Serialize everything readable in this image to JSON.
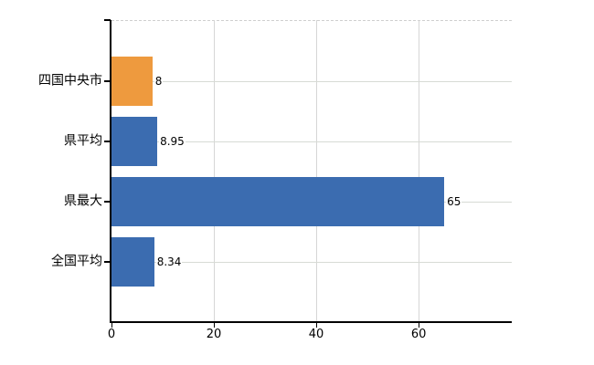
{
  "colors": {
    "highlight_bar": "#EE9A3E",
    "default_bar": "#3B6CB0",
    "axis": "#000000",
    "gridline": "#D6D6D6",
    "text": "#000000",
    "background": "#FFFFFF"
  },
  "chart_data": {
    "type": "bar",
    "orientation": "horizontal",
    "title": "",
    "xlabel": "",
    "ylabel": "",
    "categories": [
      "四国中央市",
      "県平均",
      "県最大",
      "全国平均"
    ],
    "values": [
      8,
      8.95,
      65,
      8.34
    ],
    "value_labels": [
      "8",
      "8.95",
      "65",
      "8.34"
    ],
    "bar_colors": [
      "#EE9A3E",
      "#3B6CB0",
      "#3B6CB0",
      "#3B6CB0"
    ],
    "xticks": [
      0,
      20,
      40,
      60
    ],
    "xlim": [
      0,
      78.2
    ],
    "grid": true,
    "legend": false
  }
}
